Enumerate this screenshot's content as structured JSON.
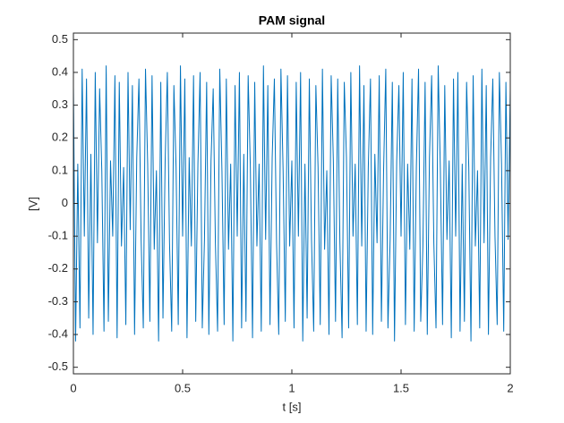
{
  "chart_data": {
    "type": "line",
    "title": "PAM signal",
    "xlabel": "t [s]",
    "ylabel": "[V]",
    "color": "#0072bd",
    "xlim": [
      0,
      2
    ],
    "xticks": [
      0,
      0.5,
      1,
      1.5,
      2
    ],
    "ylim": [
      -0.52,
      0.52
    ],
    "yticks": [
      -0.5,
      -0.4,
      -0.3,
      -0.2,
      -0.1,
      0,
      0.1,
      0.2,
      0.3,
      0.4,
      0.5
    ],
    "x": [
      0,
      0.01,
      0.02,
      0.03,
      0.04,
      0.05,
      0.06,
      0.07,
      0.08,
      0.09,
      0.1,
      0.11,
      0.12,
      0.13,
      0.14,
      0.15,
      0.16,
      0.17,
      0.18,
      0.19,
      0.2,
      0.21,
      0.22,
      0.23,
      0.24,
      0.25,
      0.26,
      0.27,
      0.28,
      0.29,
      0.3,
      0.31,
      0.32,
      0.33,
      0.34,
      0.35,
      0.36,
      0.37,
      0.38,
      0.39,
      0.4,
      0.41,
      0.42,
      0.43,
      0.44,
      0.45,
      0.46,
      0.47,
      0.48,
      0.49,
      0.5,
      0.51,
      0.52,
      0.53,
      0.54,
      0.55,
      0.56,
      0.57,
      0.58,
      0.59,
      0.6,
      0.61,
      0.62,
      0.63,
      0.64,
      0.65,
      0.66,
      0.67,
      0.68,
      0.69,
      0.7,
      0.71,
      0.72,
      0.73,
      0.74,
      0.75,
      0.76,
      0.77,
      0.78,
      0.79,
      0.8,
      0.81,
      0.82,
      0.83,
      0.84,
      0.85,
      0.86,
      0.87,
      0.88,
      0.89,
      0.9,
      0.91,
      0.92,
      0.93,
      0.94,
      0.95,
      0.96,
      0.97,
      0.98,
      0.99,
      1,
      1.01,
      1.02,
      1.03,
      1.04,
      1.05,
      1.06,
      1.07,
      1.08,
      1.09,
      1.1,
      1.11,
      1.12,
      1.13,
      1.14,
      1.15,
      1.16,
      1.17,
      1.18,
      1.19,
      1.2,
      1.21,
      1.22,
      1.23,
      1.24,
      1.25,
      1.26,
      1.27,
      1.28,
      1.29,
      1.3,
      1.31,
      1.32,
      1.33,
      1.34,
      1.35,
      1.36,
      1.37,
      1.38,
      1.39,
      1.4,
      1.41,
      1.42,
      1.43,
      1.44,
      1.45,
      1.46,
      1.47,
      1.48,
      1.49,
      1.5,
      1.51,
      1.52,
      1.53,
      1.54,
      1.55,
      1.56,
      1.57,
      1.58,
      1.59,
      1.6,
      1.61,
      1.62,
      1.63,
      1.64,
      1.65,
      1.66,
      1.67,
      1.68,
      1.69,
      1.7,
      1.71,
      1.72,
      1.73,
      1.74,
      1.75,
      1.76,
      1.77,
      1.78,
      1.79,
      1.8,
      1.81,
      1.82,
      1.83,
      1.84,
      1.85,
      1.86,
      1.87,
      1.88,
      1.89,
      1.9,
      1.91,
      1.92,
      1.93,
      1.94,
      1.95,
      1.96,
      1.97,
      1.98,
      1.99,
      2
    ],
    "values": [
      0.36,
      -0.42,
      0.12,
      -0.38,
      0.41,
      -0.1,
      0.38,
      -0.35,
      0.15,
      -0.4,
      0.4,
      -0.12,
      0.35,
      0.1,
      -0.39,
      0.42,
      -0.36,
      0.13,
      -0.1,
      0.39,
      -0.41,
      0.37,
      -0.13,
      0.11,
      -0.37,
      0.4,
      -0.08,
      0.36,
      -0.4,
      0.14,
      0.38,
      -0.11,
      -0.38,
      0.41,
      0.12,
      -0.36,
      0.39,
      -0.14,
      0.1,
      -0.42,
      0.37,
      -0.35,
      0.13,
      0.4,
      -0.12,
      -0.39,
      0.36,
      0.11,
      -0.37,
      0.42,
      -0.1,
      0.38,
      -0.41,
      0.14,
      -0.13,
      0.39,
      -0.36,
      0.12,
      0.4,
      -0.38,
      -0.11,
      0.37,
      -0.4,
      0.13,
      0.35,
      -0.12,
      -0.39,
      0.41,
      0.1,
      -0.37,
      0.38,
      -0.14,
      0.12,
      -0.42,
      0.36,
      -0.1,
      0.4,
      -0.38,
      0.15,
      -0.36,
      0.39,
      0.11,
      -0.41,
      0.37,
      -0.13,
      0.12,
      -0.39,
      0.42,
      -0.11,
      0.36,
      -0.37,
      0.14,
      0.38,
      -0.12,
      -0.4,
      0.41,
      0.1,
      -0.36,
      0.39,
      -0.13,
      0.13,
      -0.38,
      0.37,
      -0.1,
      0.4,
      -0.42,
      0.12,
      -0.35,
      0.38,
      -0.11,
      -0.39,
      0.36,
      0.11,
      -0.37,
      0.41,
      -0.14,
      0.1,
      -0.4,
      0.39,
      0.13,
      -0.36,
      0.38,
      -0.12,
      -0.41,
      0.37,
      0.14,
      -0.38,
      0.4,
      -0.1,
      0.12,
      -0.37,
      0.42,
      -0.13,
      0.36,
      -0.39,
      0.11,
      0.38,
      -0.4,
      0.15,
      -0.12,
      0.39,
      -0.36,
      0.1,
      0.41,
      -0.38,
      -0.11,
      0.37,
      -0.42,
      0.13,
      0.36,
      -0.1,
      0.4,
      -0.37,
      0.12,
      -0.14,
      0.38,
      -0.39,
      0.11,
      0.41,
      -0.36,
      -0.13,
      0.37,
      -0.4,
      0.14,
      0.39,
      -0.12,
      -0.38,
      0.42,
      0.1,
      -0.37,
      0.36,
      -0.11,
      0.13,
      -0.41,
      0.38,
      -0.1,
      0.4,
      -0.39,
      0.12,
      -0.36,
      0.37,
      0.11,
      -0.42,
      0.39,
      -0.13,
      0.1,
      -0.38,
      0.41,
      -0.12,
      0.36,
      -0.4,
      0.14,
      0.38,
      -0.1,
      -0.37,
      0.4,
      0.12,
      -0.39,
      0.37,
      -0.11,
      0.35
    ]
  }
}
